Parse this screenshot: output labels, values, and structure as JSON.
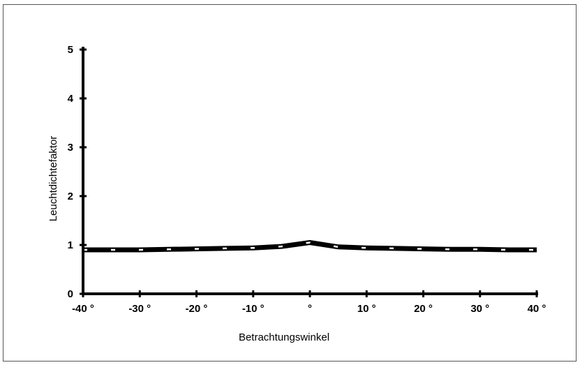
{
  "chart_data": {
    "type": "line",
    "title": "",
    "xlabel": "Betrachtungswinkel",
    "ylabel": "Leuchtdichtefaktor",
    "x": [
      -40,
      -35,
      -30,
      -25,
      -20,
      -15,
      -10,
      -5,
      0,
      5,
      10,
      15,
      20,
      25,
      30,
      35,
      40
    ],
    "series": [
      {
        "values": [
          0.9,
          0.9,
          0.9,
          0.91,
          0.92,
          0.93,
          0.94,
          0.97,
          1.05,
          0.96,
          0.94,
          0.93,
          0.92,
          0.91,
          0.91,
          0.9,
          0.9
        ]
      }
    ],
    "xlim": [
      -40,
      40
    ],
    "ylim": [
      0,
      5
    ],
    "xticks": [
      -40,
      -30,
      -20,
      -10,
      0,
      10,
      20,
      30,
      40
    ],
    "xtick_labels": [
      "-40 °",
      "-30 °",
      "-20 °",
      "-10 °",
      "°",
      "10 °",
      "20 °",
      "30 °",
      "40 °"
    ],
    "yticks": [
      0,
      1,
      2,
      3,
      4,
      5
    ],
    "ytick_labels": [
      "0",
      "1",
      "2",
      "3",
      "4",
      "5"
    ],
    "grid": false,
    "legend": "none",
    "colors": {
      "line": "#000000",
      "dash": "#ffffff",
      "axis": "#000000"
    }
  }
}
